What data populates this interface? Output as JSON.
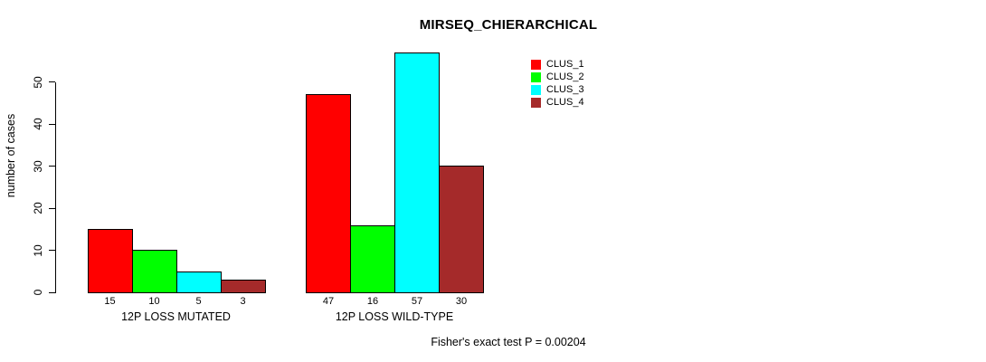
{
  "chart_data": {
    "type": "bar",
    "title": "MIRSEQ_CHIERARCHICAL",
    "ylabel": "number of cases",
    "xlabel": "",
    "categories": [
      "12P LOSS MUTATED",
      "12P LOSS WILD-TYPE"
    ],
    "series": [
      {
        "name": "CLUS_1",
        "color": "#FF0000",
        "values": [
          15,
          47
        ]
      },
      {
        "name": "CLUS_2",
        "color": "#00FF00",
        "values": [
          10,
          16
        ]
      },
      {
        "name": "CLUS_3",
        "color": "#00FFFF",
        "values": [
          5,
          57
        ]
      },
      {
        "name": "CLUS_4",
        "color": "#A52A2A",
        "values": [
          3,
          30
        ]
      }
    ],
    "yticks": [
      0,
      10,
      20,
      30,
      40,
      50
    ],
    "ylim": [
      0,
      57
    ],
    "bar_value_labels": [
      [
        15,
        10,
        5,
        3
      ],
      [
        47,
        16,
        57,
        30
      ]
    ],
    "grid": false,
    "legend_position": "top-right",
    "footnote": "Fisher's exact test P = 0.00204"
  }
}
